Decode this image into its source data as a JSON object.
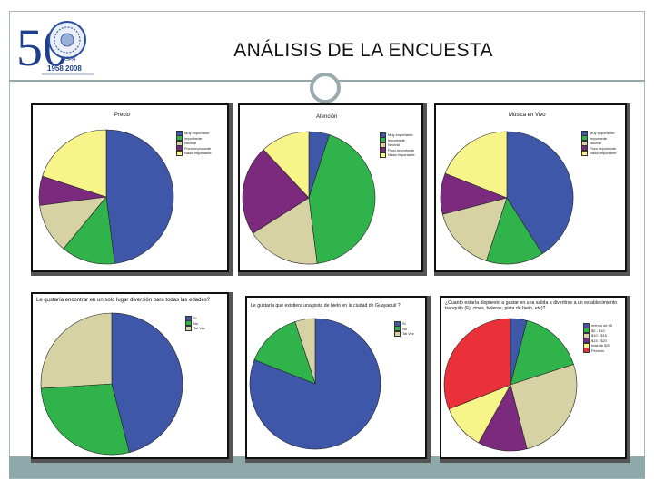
{
  "page": {
    "title": "ANÁLISIS DE LA ENCUESTA"
  },
  "logo": {
    "number": "50",
    "year_text": "1958 2008",
    "org_text": "ESPA"
  },
  "chart_data": [
    {
      "type": "pie",
      "title": "Precio",
      "categories": [
        "Muy importante",
        "Importante",
        "Neutral",
        "Poco importante",
        "Nada importante"
      ],
      "values": [
        48,
        13,
        12,
        7,
        20
      ],
      "colors": [
        "#3f57a8",
        "#2fb34a",
        "#d6d2a4",
        "#7b2a7e",
        "#f7f58a"
      ],
      "legend_position": "right"
    },
    {
      "type": "pie",
      "title": "Atención",
      "categories": [
        "Muy importante",
        "Importante",
        "Neutral",
        "Poco importante",
        "Nada importante"
      ],
      "values": [
        5,
        43,
        18,
        22,
        12
      ],
      "colors": [
        "#3f57a8",
        "#2fb34a",
        "#d6d2a4",
        "#7b2a7e",
        "#f7f58a"
      ],
      "legend_position": "right"
    },
    {
      "type": "pie",
      "title": "Música en Vivo",
      "categories": [
        "Muy importante",
        "Importante",
        "Neutral",
        "Poco importante",
        "Nada importante"
      ],
      "values": [
        41,
        14,
        16,
        10,
        19
      ],
      "colors": [
        "#3f57a8",
        "#2fb34a",
        "#d6d2a4",
        "#7b2a7e",
        "#f7f58a"
      ],
      "legend_position": "right"
    },
    {
      "type": "pie",
      "title": "Le gustaría encontrar en un solo lugar diversión para todas las edades?",
      "categories": [
        "Si",
        "No",
        "Tal Vez"
      ],
      "values": [
        46,
        28,
        26
      ],
      "colors": [
        "#3f57a8",
        "#2fb34a",
        "#d6d2a4"
      ],
      "legend_position": "right"
    },
    {
      "type": "pie",
      "title": "Le gustaría que existiera una pista de hielo en la ciudad de Guayaquil ?",
      "categories": [
        "Si",
        "No",
        "Tal Vez"
      ],
      "values": [
        81,
        14,
        5
      ],
      "colors": [
        "#3f57a8",
        "#2fb34a",
        "#d6d2a4"
      ],
      "legend_position": "right"
    },
    {
      "type": "pie",
      "title": "¿Cuanto estaría dispuesto a gastar en una salida a divertirse a un establecimiento tranquilo (Ej. cines, boleras, pista de hielo, etc)?",
      "categories": [
        "menos de $5",
        "$5 - $10",
        "$10 - $15",
        "$15 - $20",
        "más de $20",
        "Perdido"
      ],
      "values": [
        4,
        16,
        26,
        12,
        11,
        31
      ],
      "colors": [
        "#3f57a8",
        "#2fb34a",
        "#d6d2a4",
        "#7b2a7e",
        "#f7f58a",
        "#ea3038"
      ],
      "legend_position": "right"
    }
  ]
}
